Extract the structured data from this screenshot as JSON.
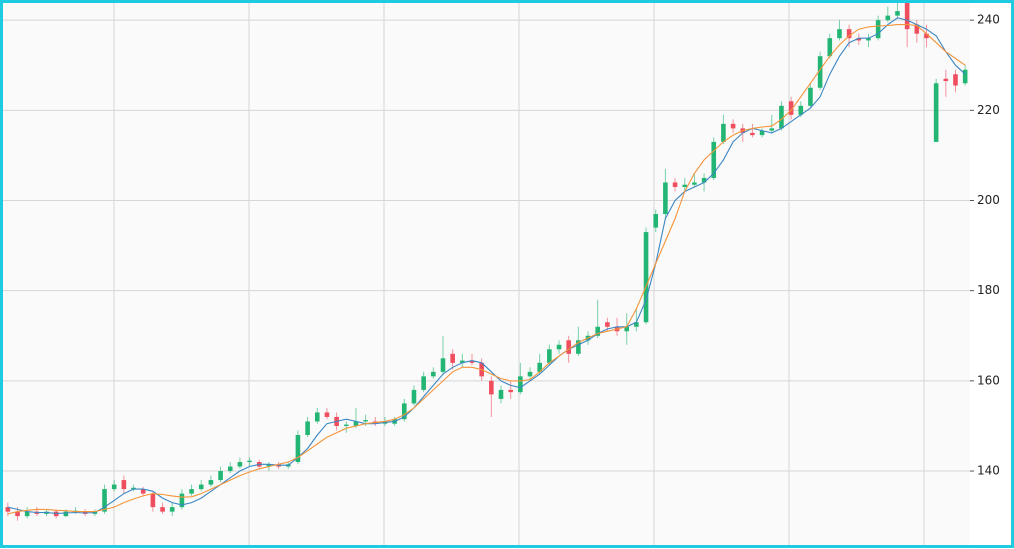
{
  "chart_data": {
    "type": "candlestick",
    "up_color": "#22b573",
    "down_color": "#ef4e5e",
    "ylim": [
      123.6,
      243.8
    ],
    "yticks": [
      140,
      160,
      180,
      200,
      220,
      240
    ],
    "grid": true,
    "candles": [
      [
        132,
        133,
        130,
        131
      ],
      [
        131,
        132,
        129,
        130
      ],
      [
        130,
        132,
        129.5,
        131
      ],
      [
        131,
        132,
        130,
        130.5
      ],
      [
        130.5,
        131.5,
        130,
        131
      ],
      [
        131,
        131.5,
        129.5,
        130
      ],
      [
        130,
        131.5,
        129.8,
        131
      ],
      [
        131,
        132,
        130.5,
        131.2
      ],
      [
        131,
        131.5,
        130,
        130.5
      ],
      [
        130.5,
        131.5,
        130,
        131
      ],
      [
        131,
        137,
        130.5,
        136
      ],
      [
        136,
        138,
        135.5,
        137
      ],
      [
        138,
        139,
        135,
        136
      ],
      [
        136,
        137,
        135.5,
        136.3
      ],
      [
        136,
        136.5,
        134.5,
        135
      ],
      [
        135,
        135.5,
        131,
        132
      ],
      [
        132,
        133,
        130.5,
        131
      ],
      [
        131,
        133,
        130,
        132
      ],
      [
        132,
        136,
        131.5,
        135
      ],
      [
        135,
        137,
        134.5,
        136
      ],
      [
        136,
        138,
        135.5,
        137
      ],
      [
        137,
        139,
        136.5,
        138
      ],
      [
        138,
        141,
        137.5,
        140
      ],
      [
        140,
        142,
        139.5,
        141
      ],
      [
        141,
        143,
        140.5,
        142
      ],
      [
        142,
        143,
        141,
        142.3
      ],
      [
        142,
        142.5,
        140.5,
        141
      ],
      [
        141,
        142,
        140,
        141.5
      ],
      [
        141.5,
        142,
        140.5,
        141
      ],
      [
        141,
        142,
        140.5,
        141.5
      ],
      [
        142,
        149,
        141.5,
        148
      ],
      [
        148,
        152,
        147.5,
        151
      ],
      [
        151,
        154,
        150.5,
        153
      ],
      [
        153,
        154,
        151.5,
        152
      ],
      [
        152,
        153,
        149,
        150
      ],
      [
        150,
        151,
        148.5,
        150.3
      ],
      [
        150,
        154,
        149.5,
        151
      ],
      [
        151,
        152.5,
        150,
        151.3
      ],
      [
        151,
        152,
        150,
        150.5
      ],
      [
        150.5,
        152,
        150,
        151
      ],
      [
        150.5,
        152,
        150,
        151.5
      ],
      [
        151.5,
        156,
        151,
        155
      ],
      [
        155,
        159,
        154.5,
        158
      ],
      [
        158,
        162,
        157.5,
        161
      ],
      [
        161,
        163,
        160.5,
        162
      ],
      [
        162,
        170,
        161.5,
        165
      ],
      [
        166,
        167,
        162.5,
        164
      ],
      [
        164,
        166,
        163,
        164.5
      ],
      [
        164.5,
        166,
        163.5,
        164
      ],
      [
        164,
        165,
        160,
        161
      ],
      [
        160,
        161,
        152,
        157
      ],
      [
        156,
        159,
        155,
        158
      ],
      [
        158,
        160,
        156,
        157.5
      ],
      [
        157.5,
        164,
        157,
        161
      ],
      [
        161,
        163,
        160,
        162
      ],
      [
        162,
        166,
        161.5,
        164
      ],
      [
        164,
        168,
        163.5,
        167
      ],
      [
        167,
        169,
        166,
        168
      ],
      [
        169,
        170,
        164,
        166
      ],
      [
        166,
        172,
        165.5,
        169
      ],
      [
        169,
        171,
        168,
        170
      ],
      [
        170,
        178,
        169.5,
        172
      ],
      [
        173,
        174,
        171,
        172
      ],
      [
        172,
        174,
        170,
        171
      ],
      [
        171,
        175,
        168,
        172
      ],
      [
        172,
        176,
        171,
        173
      ],
      [
        173,
        194,
        172.5,
        193
      ],
      [
        194,
        198,
        193,
        197
      ],
      [
        197,
        207,
        196,
        204
      ],
      [
        204,
        205,
        202,
        203
      ],
      [
        203,
        205,
        202,
        203.5
      ],
      [
        203.5,
        206,
        203,
        204
      ],
      [
        204,
        206,
        202,
        205
      ],
      [
        205,
        214,
        204.5,
        213
      ],
      [
        213,
        219,
        212.5,
        217
      ],
      [
        217,
        218,
        215,
        216
      ],
      [
        216,
        217,
        213,
        215
      ],
      [
        215,
        217,
        214,
        214.5
      ],
      [
        214.5,
        216,
        214,
        215.5
      ],
      [
        215.5,
        219,
        215,
        216
      ],
      [
        216,
        222,
        215.5,
        221
      ],
      [
        222,
        223,
        218,
        219
      ],
      [
        219,
        222,
        218.5,
        221
      ],
      [
        221,
        226,
        220.5,
        225
      ],
      [
        225,
        233,
        224.5,
        232
      ],
      [
        232,
        237,
        231.5,
        236
      ],
      [
        236,
        240,
        235.5,
        238
      ],
      [
        238,
        239,
        234,
        236
      ],
      [
        236,
        237,
        234.5,
        235.5
      ],
      [
        235.5,
        237,
        234,
        236
      ],
      [
        236,
        241,
        235.5,
        240
      ],
      [
        240,
        243,
        239.5,
        241
      ],
      [
        241,
        244,
        240.5,
        242
      ],
      [
        244,
        245,
        234,
        238
      ],
      [
        239,
        240,
        235,
        237
      ],
      [
        237,
        239,
        234,
        236
      ],
      [
        213,
        227,
        213,
        226
      ],
      [
        227,
        229,
        223,
        226.5
      ],
      [
        228,
        229,
        224,
        225.5
      ],
      [
        226,
        230,
        225.5,
        229
      ]
    ],
    "series": [
      {
        "color": "#3b87c4",
        "values": [
          132,
          131.5,
          131,
          130.8,
          130.8,
          130.6,
          130.7,
          130.8,
          130.7,
          130.8,
          132,
          133.5,
          135,
          136,
          136,
          135.5,
          134,
          133,
          132.5,
          133,
          134,
          135.5,
          137,
          138.5,
          140,
          141,
          141.5,
          141.5,
          141.3,
          141.3,
          143,
          145,
          148,
          150.5,
          151,
          151.5,
          151,
          150.5,
          150.5,
          150.8,
          151,
          152,
          154,
          156.5,
          159,
          161.5,
          163,
          164,
          164.5,
          164,
          162,
          160,
          159,
          158.5,
          160,
          161.5,
          163.5,
          165.5,
          167,
          168,
          169,
          170.5,
          171.5,
          172,
          172,
          173,
          178,
          186,
          196,
          200,
          202,
          203,
          204,
          206,
          209,
          213,
          215,
          216,
          215.5,
          215,
          216,
          217.5,
          219,
          220.5,
          223,
          228,
          232,
          235,
          236,
          236,
          237,
          239,
          240.5,
          240,
          239,
          238,
          236.5,
          233,
          230,
          228
        ]
      },
      {
        "color": "#f5943a",
        "values": [
          130.5,
          131,
          131.3,
          131.5,
          131.5,
          131.3,
          131.2,
          131,
          131,
          131,
          131.5,
          132,
          133,
          133.8,
          134.5,
          135,
          134.8,
          134.5,
          134.2,
          134.3,
          135,
          136,
          137,
          138,
          139,
          139.8,
          140.5,
          141,
          141.5,
          142,
          143,
          144.5,
          146,
          147.5,
          148.5,
          149.5,
          150,
          150.5,
          150.8,
          151,
          151.5,
          152.5,
          154,
          156,
          158,
          160,
          162,
          163,
          163,
          162.5,
          161.5,
          160.5,
          160,
          160,
          160.3,
          162,
          164,
          165.5,
          167,
          168.5,
          169.5,
          170.5,
          171,
          171.5,
          172,
          176,
          181,
          186,
          191,
          196,
          202,
          206,
          209,
          211,
          213,
          214.5,
          215.5,
          216,
          216.3,
          216.5,
          218,
          220,
          223,
          226,
          229,
          232,
          234.5,
          236.5,
          238,
          238.5,
          238.7,
          238.8,
          239,
          239,
          238.8,
          237,
          235,
          233,
          231.5,
          230
        ]
      }
    ]
  }
}
